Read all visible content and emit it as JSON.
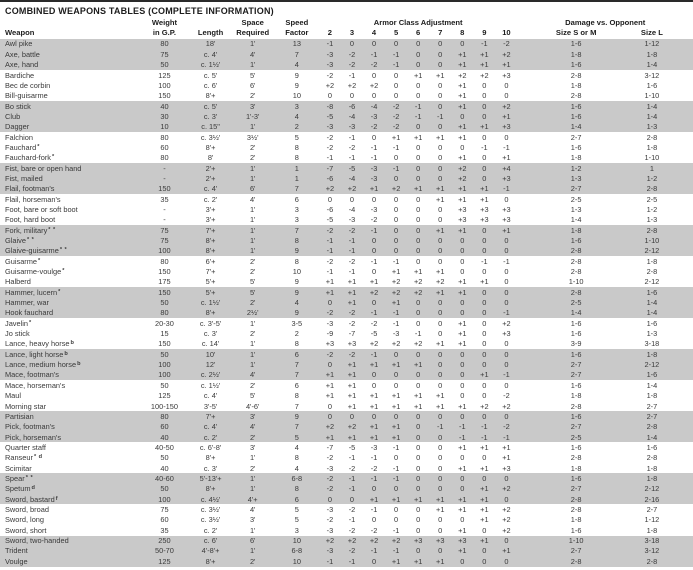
{
  "title": "COMBINED WEAPONS TABLES (COMPLETE INFORMATION)",
  "colors": {
    "row_band": "#c9c9c9",
    "text": "#3a3a3a",
    "heading_text": "#1c1c1c",
    "top_rule": "#2a2a2a"
  },
  "table": {
    "header": {
      "weapon": "Weapon",
      "weight_line1": "Weight",
      "weight_line2": "in G.P.",
      "length": "Length",
      "space_line1": "Space",
      "space_line2": "Required",
      "speed_line1": "Speed",
      "speed_line2": "Factor",
      "ac_group": "Armor Class Adjustment",
      "ac_cols": [
        "2",
        "3",
        "4",
        "5",
        "6",
        "7",
        "8",
        "9",
        "10"
      ],
      "damage_group": "Damage vs. Opponent",
      "size_sm": "Size S or M",
      "size_l": "Size L"
    },
    "rows": [
      {
        "w": "Awl pike",
        "n": "",
        "wt": "80",
        "len": "18'",
        "sp": "1'",
        "spd": "13",
        "ac": [
          "-1",
          "0",
          "0",
          "0",
          "0",
          "0",
          "0",
          "-1",
          "-2"
        ],
        "sm": "1-6",
        "l": "1-12"
      },
      {
        "w": "Axe, battle",
        "n": "",
        "wt": "75",
        "len": "c. 4'",
        "sp": "4'",
        "spd": "7",
        "ac": [
          "-3",
          "-2",
          "-1",
          "-1",
          "0",
          "0",
          "+1",
          "+1",
          "+2"
        ],
        "sm": "1-8",
        "l": "1-8"
      },
      {
        "w": "Axe, hand",
        "n": "",
        "wt": "50",
        "len": "c. 1½'",
        "sp": "1'",
        "spd": "4",
        "ac": [
          "-3",
          "-2",
          "-2",
          "-1",
          "0",
          "0",
          "+1",
          "+1",
          "+1"
        ],
        "sm": "1-6",
        "l": "1-4"
      },
      {
        "w": "Bardiche",
        "n": "",
        "wt": "125",
        "len": "c. 5'",
        "sp": "5'",
        "spd": "9",
        "ac": [
          "-2",
          "-1",
          "0",
          "0",
          "+1",
          "+1",
          "+2",
          "+2",
          "+3"
        ],
        "sm": "2-8",
        "l": "3-12"
      },
      {
        "w": "Bec de corbin",
        "n": "",
        "wt": "100",
        "len": "c. 6'",
        "sp": "6'",
        "spd": "9",
        "ac": [
          "+2",
          "+2",
          "+2",
          "0",
          "0",
          "0",
          "+1",
          "0",
          "0"
        ],
        "sm": "1-8",
        "l": "1-6"
      },
      {
        "w": "Bill-guisarme",
        "n": "",
        "wt": "150",
        "len": "8'+",
        "sp": "2'",
        "spd": "10",
        "ac": [
          "0",
          "0",
          "0",
          "0",
          "0",
          "0",
          "+1",
          "0",
          "0"
        ],
        "sm": "2-8",
        "l": "1-10"
      },
      {
        "w": "Bo stick",
        "n": "",
        "wt": "40",
        "len": "c. 5'",
        "sp": "3'",
        "spd": "3",
        "ac": [
          "-8",
          "-6",
          "-4",
          "-2",
          "-1",
          "0",
          "+1",
          "0",
          "+2"
        ],
        "sm": "1-6",
        "l": "1-4"
      },
      {
        "w": "Club",
        "n": "",
        "wt": "30",
        "len": "c. 3'",
        "sp": "1'-3'",
        "spd": "4",
        "ac": [
          "-5",
          "-4",
          "-3",
          "-2",
          "-1",
          "-1",
          "0",
          "0",
          "+1"
        ],
        "sm": "1-6",
        "l": "1-4"
      },
      {
        "w": "Dagger",
        "n": "",
        "wt": "10",
        "len": "c. 15\"",
        "sp": "1'",
        "spd": "2",
        "ac": [
          "-3",
          "-3",
          "-2",
          "-2",
          "0",
          "0",
          "+1",
          "+1",
          "+3"
        ],
        "sm": "1-4",
        "l": "1-3"
      },
      {
        "w": "Falchion",
        "n": "",
        "wt": "80",
        "len": "c. 3½'",
        "sp": "3½'",
        "spd": "5",
        "ac": [
          "-2",
          "-1",
          "0",
          "+1",
          "+1",
          "+1",
          "+1",
          "0",
          "0"
        ],
        "sm": "2-7",
        "l": "2-8"
      },
      {
        "w": "Fauchard",
        "n": "*",
        "wt": "60",
        "len": "8'+",
        "sp": "2'",
        "spd": "8",
        "ac": [
          "-2",
          "-2",
          "-1",
          "-1",
          "0",
          "0",
          "0",
          "-1",
          "-1"
        ],
        "sm": "1-6",
        "l": "1-8"
      },
      {
        "w": "Fauchard-fork",
        "n": "*",
        "wt": "80",
        "len": "8'",
        "sp": "2'",
        "spd": "8",
        "ac": [
          "-1",
          "-1",
          "-1",
          "0",
          "0",
          "0",
          "+1",
          "0",
          "+1"
        ],
        "sm": "1-8",
        "l": "1-10"
      },
      {
        "w": "Fist, bare or open hand",
        "n": "",
        "wt": "-",
        "len": "2'+",
        "sp": "1'",
        "spd": "1",
        "ac": [
          "-7",
          "-5",
          "-3",
          "-1",
          "0",
          "0",
          "+2",
          "0",
          "+4"
        ],
        "sm": "1-2",
        "l": "1"
      },
      {
        "w": "Fist, mailed",
        "n": "",
        "wt": "-",
        "len": "2'+",
        "sp": "1'",
        "spd": "1",
        "ac": [
          "-6",
          "-4",
          "-3",
          "0",
          "0",
          "0",
          "+2",
          "0",
          "+3"
        ],
        "sm": "1-3",
        "l": "1-2"
      },
      {
        "w": "Flail, footman's",
        "n": "",
        "wt": "150",
        "len": "c. 4'",
        "sp": "6'",
        "spd": "7",
        "ac": [
          "+2",
          "+2",
          "+1",
          "+2",
          "+1",
          "+1",
          "+1",
          "+1",
          "-1"
        ],
        "sm": "2-7",
        "l": "2-8"
      },
      {
        "w": "Flail, horseman's",
        "n": "",
        "wt": "35",
        "len": "c. 2'",
        "sp": "4'",
        "spd": "6",
        "ac": [
          "0",
          "0",
          "0",
          "0",
          "0",
          "+1",
          "+1",
          "+1",
          "0"
        ],
        "sm": "2-5",
        "l": "2-5"
      },
      {
        "w": "Foot, bare or soft boot",
        "n": "",
        "wt": "-",
        "len": "3'+",
        "sp": "1'",
        "spd": "3",
        "ac": [
          "-6",
          "-4",
          "-3",
          "0",
          "0",
          "0",
          "+3",
          "+3",
          "+3"
        ],
        "sm": "1-3",
        "l": "1-2"
      },
      {
        "w": "Foot, hard boot",
        "n": "",
        "wt": "-",
        "len": "3'+",
        "sp": "1'",
        "spd": "3",
        "ac": [
          "-5",
          "-3",
          "-2",
          "0",
          "0",
          "0",
          "+3",
          "+3",
          "+3"
        ],
        "sm": "1-4",
        "l": "1-3"
      },
      {
        "w": "Fork, military",
        "n": "* *",
        "wt": "75",
        "len": "7'+",
        "sp": "1'",
        "spd": "7",
        "ac": [
          "-2",
          "-2",
          "-1",
          "0",
          "0",
          "+1",
          "+1",
          "0",
          "+1"
        ],
        "sm": "1-8",
        "l": "2-8"
      },
      {
        "w": "Glaive",
        "n": "* *",
        "wt": "75",
        "len": "8'+",
        "sp": "1'",
        "spd": "8",
        "ac": [
          "-1",
          "-1",
          "0",
          "0",
          "0",
          "0",
          "0",
          "0",
          "0"
        ],
        "sm": "1-6",
        "l": "1-10"
      },
      {
        "w": "Glaive-guisarme",
        "n": "* *",
        "wt": "100",
        "len": "8'+",
        "sp": "1'",
        "spd": "9",
        "ac": [
          "-1",
          "-1",
          "0",
          "0",
          "0",
          "0",
          "0",
          "0",
          "0"
        ],
        "sm": "2-8",
        "l": "2-12"
      },
      {
        "w": "Guisarme",
        "n": "*",
        "wt": "80",
        "len": "6'+",
        "sp": "2'",
        "spd": "8",
        "ac": [
          "-2",
          "-2",
          "-1",
          "-1",
          "0",
          "0",
          "0",
          "-1",
          "-1"
        ],
        "sm": "2-8",
        "l": "1-8"
      },
      {
        "w": "Guisarme-voulge",
        "n": "*",
        "wt": "150",
        "len": "7'+",
        "sp": "2'",
        "spd": "10",
        "ac": [
          "-1",
          "-1",
          "0",
          "+1",
          "+1",
          "+1",
          "0",
          "0",
          "0"
        ],
        "sm": "2-8",
        "l": "2-8"
      },
      {
        "w": "Halberd",
        "n": "",
        "wt": "175",
        "len": "5'+",
        "sp": "5'",
        "spd": "9",
        "ac": [
          "+1",
          "+1",
          "+1",
          "+2",
          "+2",
          "+2",
          "+1",
          "+1",
          "0"
        ],
        "sm": "1-10",
        "l": "2-12"
      },
      {
        "w": "Hammer, lucern",
        "n": "*",
        "wt": "150",
        "len": "5'+",
        "sp": "5'",
        "spd": "9",
        "ac": [
          "+1",
          "+1",
          "+2",
          "+2",
          "+2",
          "+1",
          "+1",
          "0",
          "0"
        ],
        "sm": "2-8",
        "l": "1-6"
      },
      {
        "w": "Hammer, war",
        "n": "",
        "wt": "50",
        "len": "c. 1½'",
        "sp": "2'",
        "spd": "4",
        "ac": [
          "0",
          "+1",
          "0",
          "+1",
          "0",
          "0",
          "0",
          "0",
          "0"
        ],
        "sm": "2-5",
        "l": "1-4"
      },
      {
        "w": "Hook fauchard",
        "n": "",
        "wt": "80",
        "len": "8'+",
        "sp": "2½'",
        "spd": "9",
        "ac": [
          "-2",
          "-2",
          "-1",
          "-1",
          "0",
          "0",
          "0",
          "0",
          "-1"
        ],
        "sm": "1-4",
        "l": "1-4"
      },
      {
        "w": "Javelin",
        "n": "*",
        "wt": "20-30",
        "len": "c. 3'-5'",
        "sp": "1'",
        "spd": "3-5",
        "ac": [
          "-3",
          "-2",
          "-2",
          "-1",
          "0",
          "0",
          "+1",
          "0",
          "+2"
        ],
        "sm": "1-6",
        "l": "1-6"
      },
      {
        "w": "Jo stick",
        "n": "",
        "wt": "15",
        "len": "c. 3'",
        "sp": "2'",
        "spd": "2",
        "ac": [
          "-9",
          "-7",
          "-5",
          "-3",
          "-1",
          "0",
          "+1",
          "0",
          "+3"
        ],
        "sm": "1-6",
        "l": "1-3"
      },
      {
        "w": "Lance, heavy horse",
        "n": "b",
        "wt": "150",
        "len": "c. 14'",
        "sp": "1'",
        "spd": "8",
        "ac": [
          "+3",
          "+3",
          "+2",
          "+2",
          "+2",
          "+1",
          "+1",
          "0",
          "0"
        ],
        "sm": "3-9",
        "l": "3-18"
      },
      {
        "w": "Lance, light horse",
        "n": "b",
        "wt": "50",
        "len": "10'",
        "sp": "1'",
        "spd": "6",
        "ac": [
          "-2",
          "-2",
          "-1",
          "0",
          "0",
          "0",
          "0",
          "0",
          "0"
        ],
        "sm": "1-6",
        "l": "1-8"
      },
      {
        "w": "Lance, medium horse",
        "n": "b",
        "wt": "100",
        "len": "12'",
        "sp": "1'",
        "spd": "7",
        "ac": [
          "0",
          "+1",
          "+1",
          "+1",
          "+1",
          "0",
          "0",
          "0",
          "0"
        ],
        "sm": "2-7",
        "l": "2-12"
      },
      {
        "w": "Mace, footman's",
        "n": "",
        "wt": "100",
        "len": "c. 2½'",
        "sp": "4'",
        "spd": "7",
        "ac": [
          "+1",
          "+1",
          "0",
          "0",
          "0",
          "0",
          "0",
          "+1",
          "-1"
        ],
        "sm": "2-7",
        "l": "1-6"
      },
      {
        "w": "Mace, horseman's",
        "n": "",
        "wt": "50",
        "len": "c. 1½'",
        "sp": "2'",
        "spd": "6",
        "ac": [
          "+1",
          "+1",
          "0",
          "0",
          "0",
          "0",
          "0",
          "0",
          "0"
        ],
        "sm": "1-6",
        "l": "1-4"
      },
      {
        "w": "Maul",
        "n": "",
        "wt": "125",
        "len": "c. 4'",
        "sp": "5'",
        "spd": "8",
        "ac": [
          "+1",
          "+1",
          "+1",
          "+1",
          "+1",
          "+1",
          "0",
          "0",
          "-2"
        ],
        "sm": "1-8",
        "l": "1-8"
      },
      {
        "w": "Morning star",
        "n": "",
        "wt": "100-150",
        "len": "3'-5'",
        "sp": "4'-6'",
        "spd": "7",
        "ac": [
          "0",
          "+1",
          "+1",
          "+1",
          "+1",
          "+1",
          "+1",
          "+2",
          "+2"
        ],
        "sm": "2-8",
        "l": "2-7"
      },
      {
        "w": "Partisian",
        "n": "",
        "wt": "80",
        "len": "7'+",
        "sp": "3'",
        "spd": "9",
        "ac": [
          "0",
          "0",
          "0",
          "0",
          "0",
          "0",
          "0",
          "0",
          "0"
        ],
        "sm": "1-6",
        "l": "2-7"
      },
      {
        "w": "Pick, footman's",
        "n": "",
        "wt": "60",
        "len": "c. 4'",
        "sp": "4'",
        "spd": "7",
        "ac": [
          "+2",
          "+2",
          "+1",
          "+1",
          "0",
          "-1",
          "-1",
          "-1",
          "-2"
        ],
        "sm": "2-7",
        "l": "2-8"
      },
      {
        "w": "Pick, horseman's",
        "n": "",
        "wt": "40",
        "len": "c. 2'",
        "sp": "2'",
        "spd": "5",
        "ac": [
          "+1",
          "+1",
          "+1",
          "+1",
          "0",
          "0",
          "-1",
          "-1",
          "-1"
        ],
        "sm": "2-5",
        "l": "1-4"
      },
      {
        "w": "Quarter staff",
        "n": "",
        "wt": "40-50",
        "len": "c. 6'-8'",
        "sp": "3'",
        "spd": "4",
        "ac": [
          "-7",
          "-5",
          "-3",
          "-1",
          "0",
          "0",
          "+1",
          "+1",
          "+1"
        ],
        "sm": "1-6",
        "l": "1-6"
      },
      {
        "w": "Ranseur",
        "n": "* d",
        "wt": "50",
        "len": "8'+",
        "sp": "1'",
        "spd": "8",
        "ac": [
          "-2",
          "-1",
          "-1",
          "0",
          "0",
          "0",
          "0",
          "0",
          "+1"
        ],
        "sm": "2-8",
        "l": "2-8"
      },
      {
        "w": "Scimitar",
        "n": "",
        "wt": "40",
        "len": "c. 3'",
        "sp": "2'",
        "spd": "4",
        "ac": [
          "-3",
          "-2",
          "-2",
          "-1",
          "0",
          "0",
          "+1",
          "+1",
          "+3"
        ],
        "sm": "1-8",
        "l": "1-8"
      },
      {
        "w": "Spear",
        "n": "* *",
        "wt": "40-60",
        "len": "5'-13'+",
        "sp": "1'",
        "spd": "6-8",
        "ac": [
          "-2",
          "-1",
          "-1",
          "-1",
          "0",
          "0",
          "0",
          "0",
          "0"
        ],
        "sm": "1-6",
        "l": "1-8"
      },
      {
        "w": "Spetum",
        "n": "d",
        "wt": "50",
        "len": "8'+",
        "sp": "1'",
        "spd": "8",
        "ac": [
          "-2",
          "-1",
          "0",
          "0",
          "0",
          "0",
          "0",
          "+1",
          "+2"
        ],
        "sm": "2-7",
        "l": "2-12"
      },
      {
        "w": "Sword, bastard",
        "n": "f",
        "wt": "100",
        "len": "c. 4½'",
        "sp": "4'+",
        "spd": "6",
        "ac": [
          "0",
          "0",
          "+1",
          "+1",
          "+1",
          "+1",
          "+1",
          "+1",
          "0"
        ],
        "sm": "2-8",
        "l": "2-16"
      },
      {
        "w": "Sword, broad",
        "n": "",
        "wt": "75",
        "len": "c. 3½'",
        "sp": "4'",
        "spd": "5",
        "ac": [
          "-3",
          "-2",
          "-1",
          "0",
          "0",
          "+1",
          "+1",
          "+1",
          "+2"
        ],
        "sm": "2-8",
        "l": "2-7"
      },
      {
        "w": "Sword, long",
        "n": "",
        "wt": "60",
        "len": "c. 3½'",
        "sp": "3'",
        "spd": "5",
        "ac": [
          "-2",
          "-1",
          "0",
          "0",
          "0",
          "0",
          "0",
          "+1",
          "+2"
        ],
        "sm": "1-8",
        "l": "1-12"
      },
      {
        "w": "Sword, short",
        "n": "",
        "wt": "35",
        "len": "c. 2'",
        "sp": "1'",
        "spd": "3",
        "ac": [
          "-3",
          "-2",
          "-2",
          "-1",
          "0",
          "0",
          "+1",
          "0",
          "+2"
        ],
        "sm": "1-6",
        "l": "1-8"
      },
      {
        "w": "Sword, two-handed",
        "n": "",
        "wt": "250",
        "len": "c. 6'",
        "sp": "6'",
        "spd": "10",
        "ac": [
          "+2",
          "+2",
          "+2",
          "+2",
          "+3",
          "+3",
          "+3",
          "+1",
          "0"
        ],
        "sm": "1-10",
        "l": "3-18"
      },
      {
        "w": "Trident",
        "n": "",
        "wt": "50-70",
        "len": "4'-8'+",
        "sp": "1'",
        "spd": "6-8",
        "ac": [
          "-3",
          "-2",
          "-1",
          "-1",
          "0",
          "0",
          "+1",
          "0",
          "+1"
        ],
        "sm": "2-7",
        "l": "3-12"
      },
      {
        "w": "Voulge",
        "n": "",
        "wt": "125",
        "len": "8'+",
        "sp": "2'",
        "spd": "10",
        "ac": [
          "-1",
          "-1",
          "0",
          "+1",
          "+1",
          "+1",
          "0",
          "0",
          "0"
        ],
        "sm": "2-8",
        "l": "2-8"
      }
    ]
  }
}
